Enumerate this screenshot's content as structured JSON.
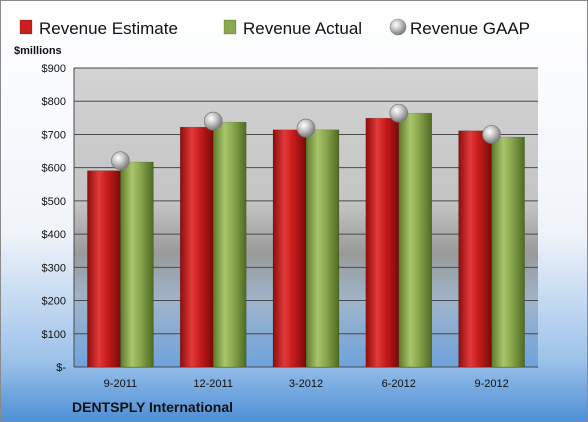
{
  "chart_data": {
    "type": "bar",
    "title": "",
    "company": "DENTSPLY International",
    "ylabel": "$millions",
    "xlabel": "",
    "categories": [
      "9-2011",
      "12-2011",
      "3-2012",
      "6-2012",
      "9-2012"
    ],
    "series": [
      {
        "name": "Revenue Estimate",
        "kind": "bar",
        "color": "#cc1f1f",
        "values": [
          591,
          722,
          714,
          749,
          711
        ]
      },
      {
        "name": "Revenue Actual",
        "kind": "bar",
        "color": "#8aa84e",
        "values": [
          617,
          737,
          714,
          764,
          692
        ]
      },
      {
        "name": "Revenue GAAP",
        "kind": "marker",
        "color": "#b8b8b8",
        "values": [
          621,
          740,
          719,
          764,
          700
        ]
      }
    ],
    "yticks": [
      0,
      100,
      200,
      300,
      400,
      500,
      600,
      700,
      800,
      900
    ],
    "ytick_labels": [
      "$-",
      "$100",
      "$200",
      "$300",
      "$400",
      "$500",
      "$600",
      "$700",
      "$800",
      "$900"
    ],
    "ylim": [
      0,
      900
    ],
    "grid": true,
    "legend": "top"
  }
}
